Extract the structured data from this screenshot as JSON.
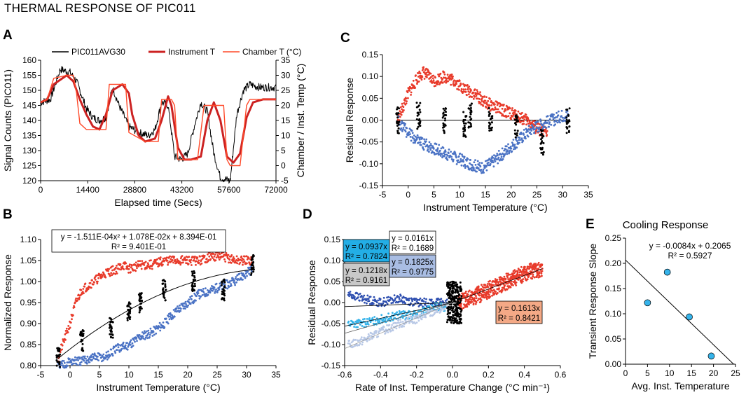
{
  "figure_title": "THERMAL RESPONSE OF PIC011",
  "chart_data": [
    {
      "id": "A",
      "type": "line",
      "title": "",
      "xlabel": "Elapsed time (Secs)",
      "ylabel": "Signal Counts (PIC011)",
      "y2label": "Chamber / Inst. Temp (°C)",
      "xlim": [
        0,
        72000
      ],
      "ylim": [
        120,
        160
      ],
      "y2lim": [
        -5,
        35
      ],
      "x_ticks": [
        0,
        14400,
        28800,
        43200,
        57600,
        72000
      ],
      "y_ticks": [
        120,
        125,
        130,
        135,
        140,
        145,
        150,
        155,
        160
      ],
      "y2_ticks": [
        -5,
        0,
        5,
        10,
        15,
        20,
        25,
        30,
        35
      ],
      "legend": [
        "PIC011AVG30",
        "Instrument T",
        "Chamber T (°C)"
      ],
      "colors": {
        "signal": "#000000",
        "instrument": "#cc2222",
        "chamber": "#ff4a2a"
      },
      "series": [
        {
          "name": "PIC011AVG30",
          "axis": "left",
          "x": [
            0,
            3000,
            6000,
            9000,
            11000,
            14000,
            16000,
            18000,
            20000,
            22000,
            24000,
            27000,
            30000,
            33000,
            35000,
            37000,
            39000,
            41000,
            43000,
            45000,
            47000,
            49000,
            51000,
            53000,
            55000,
            58000,
            60000,
            62000,
            64000,
            67000,
            70000,
            72000
          ],
          "y": [
            146,
            147,
            157,
            156,
            153,
            144,
            141,
            140,
            141,
            151,
            145,
            138,
            136,
            135,
            137,
            146,
            145,
            128,
            127,
            129,
            138,
            146,
            143,
            129,
            121,
            120,
            142,
            150,
            152,
            151,
            151,
            151
          ]
        },
        {
          "name": "Instrument T",
          "axis": "right",
          "x": [
            0,
            2000,
            4000,
            8000,
            10000,
            12000,
            14000,
            16000,
            18000,
            20000,
            22000,
            25000,
            27000,
            28000,
            30000,
            32000,
            35000,
            37000,
            39000,
            40000,
            42000,
            44000,
            46000,
            49000,
            51000,
            53000,
            55000,
            57000,
            59000,
            61000,
            63000,
            65000,
            68000,
            72000
          ],
          "y": [
            21,
            22,
            27,
            30,
            28,
            22,
            17,
            13,
            12,
            17,
            25,
            27,
            24,
            17,
            10,
            8,
            9,
            15,
            23,
            20,
            6,
            2,
            2,
            3,
            15,
            21,
            15,
            3,
            1,
            4,
            16,
            21,
            22,
            22
          ]
        },
        {
          "name": "Chamber T (°C)",
          "axis": "right",
          "x": [
            0,
            2000,
            4000,
            8000,
            10000,
            11000,
            12000,
            14000,
            16000,
            18000,
            20000,
            21000,
            25000,
            26000,
            27000,
            32000,
            35000,
            36000,
            37000,
            40000,
            41000,
            42000,
            47000,
            48000,
            50000,
            52000,
            53000,
            56000,
            57000,
            58000,
            60000,
            61000,
            63000,
            64000,
            72000
          ],
          "y": [
            21,
            22,
            29,
            30,
            30,
            24,
            14,
            12,
            12,
            12,
            12,
            27,
            27,
            27,
            11,
            8,
            8,
            8,
            22,
            22,
            20,
            2,
            2,
            2,
            20,
            20,
            20,
            20,
            2,
            0,
            0,
            0,
            20,
            22,
            22
          ]
        }
      ]
    },
    {
      "id": "B",
      "type": "scatter",
      "xlabel": "Instrument Temperature (°C)",
      "ylabel": "Normalized Response",
      "xlim": [
        -5,
        35
      ],
      "ylim": [
        0.8,
        1.1
      ],
      "x_ticks": [
        -5,
        0,
        5,
        10,
        15,
        20,
        25,
        30,
        35
      ],
      "y_ticks": [
        "0.80",
        "0.85",
        "0.90",
        "0.95",
        "1.00",
        "1.05",
        "1.10"
      ],
      "annotation": [
        "y = -1.511E-04x² + 1.078E-02x + 8.394E-01",
        "R² = 9.401E-01"
      ],
      "fit": {
        "a": -0.0001511,
        "b": 0.01078,
        "c": 0.8394,
        "x_range": [
          -2,
          31
        ]
      },
      "series": [
        {
          "name": "warming",
          "color": "#e83a2a",
          "x": [
            -2,
            0,
            1,
            2,
            4,
            6,
            8,
            9,
            10,
            12,
            14,
            16,
            18,
            20,
            22,
            24,
            26,
            28,
            30,
            31
          ],
          "y": [
            0.82,
            0.9,
            0.95,
            0.98,
            1.0,
            1.02,
            1.03,
            1.04,
            1.03,
            1.04,
            1.04,
            1.05,
            1.05,
            1.05,
            1.05,
            1.06,
            1.06,
            1.05,
            1.05,
            1.05
          ]
        },
        {
          "name": "cooling",
          "color": "#4a72c4",
          "x": [
            -2,
            0,
            2,
            4,
            6,
            8,
            10,
            12,
            14,
            16,
            18,
            20,
            22,
            24,
            26,
            28,
            30,
            31
          ],
          "y": [
            0.8,
            0.81,
            0.81,
            0.82,
            0.82,
            0.84,
            0.85,
            0.87,
            0.88,
            0.9,
            0.93,
            0.95,
            0.97,
            0.98,
            0.99,
            1.0,
            1.02,
            1.03
          ]
        },
        {
          "name": "transitions",
          "color": "#000000",
          "x": [
            -2,
            2,
            7,
            10,
            12,
            16,
            21,
            26,
            31
          ],
          "y": [
            0.82,
            0.86,
            0.89,
            0.93,
            0.95,
            0.98,
            1.0,
            0.98,
            1.04
          ]
        }
      ]
    },
    {
      "id": "C",
      "type": "scatter",
      "xlabel": "Instrument Temperature (°C)",
      "ylabel": "Residual Response",
      "xlim": [
        -5,
        35
      ],
      "ylim": [
        -0.15,
        0.15
      ],
      "x_ticks": [
        -5,
        0,
        5,
        10,
        15,
        20,
        25,
        30,
        35
      ],
      "y_ticks": [
        "-0.15",
        "-0.10",
        "-0.05",
        "0.00",
        "0.05",
        "0.10",
        "0.15"
      ],
      "series": [
        {
          "name": "warming",
          "color": "#e83a2a",
          "x": [
            -2,
            0,
            2,
            3,
            5,
            7,
            9,
            11,
            13,
            15,
            17,
            19,
            21,
            23,
            25,
            27
          ],
          "y": [
            0.0,
            0.06,
            0.1,
            0.11,
            0.09,
            0.1,
            0.09,
            0.07,
            0.06,
            0.04,
            0.03,
            0.02,
            0.01,
            0.0,
            -0.02,
            -0.03
          ]
        },
        {
          "name": "cooling",
          "color": "#4a72c4",
          "x": [
            -2,
            0,
            2,
            4,
            6,
            8,
            10,
            12,
            14,
            16,
            18,
            20,
            22,
            24,
            26,
            28,
            30,
            31
          ],
          "y": [
            0.0,
            -0.03,
            -0.05,
            -0.06,
            -0.07,
            -0.08,
            -0.09,
            -0.1,
            -0.11,
            -0.1,
            -0.08,
            -0.06,
            -0.04,
            -0.02,
            -0.01,
            0.0,
            0.01,
            0.01
          ]
        },
        {
          "name": "transitions",
          "color": "#000000",
          "x": [
            -2,
            2,
            7,
            11,
            12,
            16,
            21,
            26,
            31
          ],
          "y": [
            0.0,
            0.01,
            0.0,
            -0.01,
            0.01,
            0.0,
            -0.01,
            -0.05,
            0.0
          ]
        }
      ]
    },
    {
      "id": "D",
      "type": "scatter",
      "xlabel": "Rate of  Inst. Temperature Change (°C min⁻¹)",
      "ylabel": "Residual Response",
      "xlim": [
        -0.6,
        0.6
      ],
      "ylim": [
        -0.15,
        0.15
      ],
      "x_ticks": [
        "-0.6",
        "-0.4",
        "-0.2",
        "0.0",
        "0.2",
        "0.4",
        "0.6"
      ],
      "y_ticks": [
        "-0.15",
        "-0.10",
        "-0.05",
        "0.00",
        "0.05",
        "0.10",
        "0.15"
      ],
      "fits": [
        {
          "slope": 0.0937,
          "r2": 0.7824,
          "label": [
            "y = 0.0937x",
            "R² = 0.7824"
          ],
          "color": "#23aee6"
        },
        {
          "slope": 0.0161,
          "r2": 0.1689,
          "label": [
            "y = 0.0161x",
            "R² = 0.1689"
          ],
          "color": "#ffffff"
        },
        {
          "slope": 0.1218,
          "r2": 0.9161,
          "label": [
            "y = 0.1218x",
            "R² = 0.9161"
          ],
          "color": "#c8c8c8"
        },
        {
          "slope": 0.1825,
          "r2": 0.9775,
          "label": [
            "y = 0.1825x",
            "R² = 0.9775"
          ],
          "color": "#a9bde3"
        },
        {
          "slope": 0.1613,
          "r2": 0.8421,
          "label": [
            "y = 0.1613x",
            "R² = 0.8421"
          ],
          "color": "#f4a986"
        }
      ],
      "series": [
        {
          "name": "cooling-1",
          "color": "#2e4fb0",
          "x": [
            -0.58,
            -0.5,
            -0.4,
            -0.3,
            -0.2,
            -0.1,
            -0.03
          ],
          "y": [
            0.02,
            0.01,
            0.0,
            0.01,
            0.0,
            0.0,
            0.0
          ]
        },
        {
          "name": "cooling-2",
          "color": "#35b3ea",
          "x": [
            -0.58,
            -0.5,
            -0.4,
            -0.3,
            -0.2,
            -0.1,
            -0.03
          ],
          "y": [
            -0.05,
            -0.05,
            -0.04,
            -0.03,
            -0.03,
            -0.01,
            -0.01
          ]
        },
        {
          "name": "cooling-3",
          "color": "#b8c8e6",
          "x": [
            -0.58,
            -0.5,
            -0.4,
            -0.3,
            -0.2,
            -0.1,
            -0.03
          ],
          "y": [
            -0.1,
            -0.09,
            -0.07,
            -0.05,
            -0.04,
            -0.02,
            -0.01
          ]
        },
        {
          "name": "warming",
          "color": "#e83a2a",
          "x": [
            0.03,
            0.1,
            0.2,
            0.3,
            0.4,
            0.5
          ],
          "y": [
            0.0,
            0.01,
            0.03,
            0.05,
            0.07,
            0.08
          ]
        },
        {
          "name": "steady",
          "color": "#000000",
          "x": [
            -0.03,
            -0.02,
            0.0,
            0.02,
            0.04,
            0.05
          ],
          "y": [
            -0.05,
            0.03,
            -0.03,
            0.05,
            0.0,
            -0.03
          ]
        }
      ]
    },
    {
      "id": "E",
      "type": "scatter",
      "title": "Cooling Response",
      "xlabel": "Avg. Inst. Temperature",
      "ylabel": "Transient Response Slope",
      "xlim": [
        0,
        25
      ],
      "ylim": [
        0,
        0.25
      ],
      "x_ticks": [
        0,
        5,
        10,
        15,
        20,
        25
      ],
      "y_ticks": [
        "0.00",
        "0.05",
        "0.10",
        "0.15",
        "0.20",
        "0.25"
      ],
      "annotation": [
        "y = -0.0084x + 0.2065",
        "R² = 0.5927"
      ],
      "fit": {
        "slope": -0.0084,
        "intercept": 0.2065
      },
      "points": [
        {
          "x": 5,
          "y": 0.1218
        },
        {
          "x": 9.5,
          "y": 0.1825
        },
        {
          "x": 14.5,
          "y": 0.0937
        },
        {
          "x": 19.5,
          "y": 0.0161
        }
      ],
      "marker_color": "#35b3ea"
    }
  ]
}
